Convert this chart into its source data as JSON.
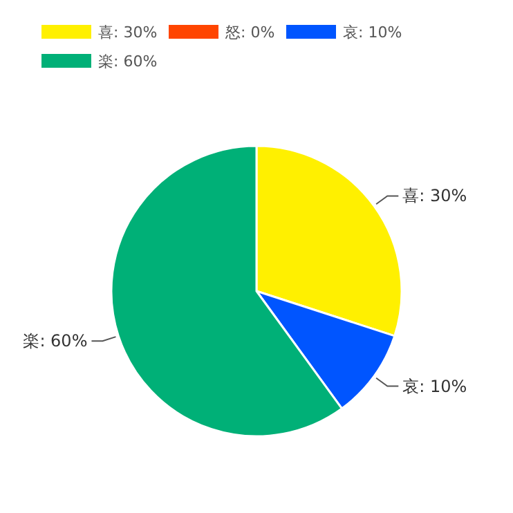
{
  "chart_data": {
    "type": "pie",
    "categories": [
      "喜: 30%",
      "怒: 0%",
      "哀: 10%",
      "楽: 60%"
    ],
    "values": [
      30,
      0,
      10,
      60
    ],
    "colors": [
      "#fff000",
      "#ff4500",
      "#0055ff",
      "#00b077"
    ],
    "legend": "top left"
  }
}
